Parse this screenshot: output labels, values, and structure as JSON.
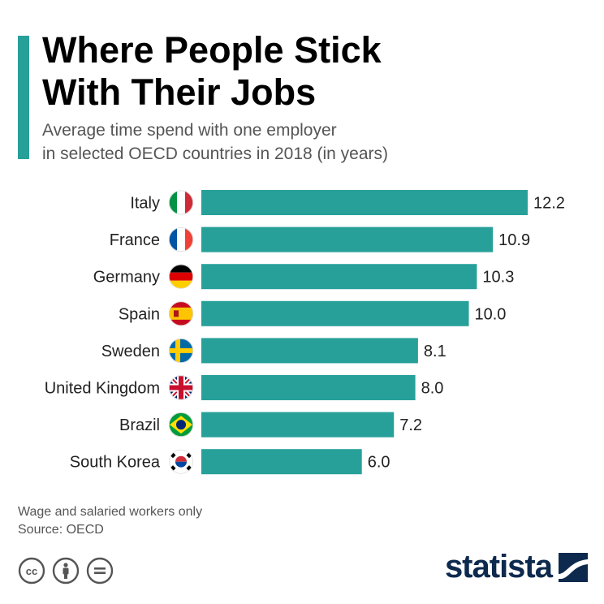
{
  "header": {
    "title_line1": "Where People Stick",
    "title_line2": "With Their Jobs",
    "subtitle_line1": "Average time spend with one employer",
    "subtitle_line2": "in selected OECD countries in 2018 (in years)"
  },
  "footer": {
    "note": "Wage and salaried workers only",
    "source": "Source: OECD",
    "brand": "statista"
  },
  "colors": {
    "accent": "#27a09a",
    "bar": "#27a09a",
    "brand": "#0d2a4e"
  },
  "icons": [
    "creative-commons-icon",
    "attribution-icon",
    "no-derivatives-icon",
    "statista-logo-icon"
  ],
  "chart_data": {
    "type": "bar",
    "orientation": "horizontal",
    "categories": [
      "Italy",
      "France",
      "Germany",
      "Spain",
      "Sweden",
      "United Kingdom",
      "Brazil",
      "South Korea"
    ],
    "flags": [
      "flag-italy-icon",
      "flag-france-icon",
      "flag-germany-icon",
      "flag-spain-icon",
      "flag-sweden-icon",
      "flag-uk-icon",
      "flag-brazil-icon",
      "flag-south-korea-icon"
    ],
    "values": [
      12.2,
      10.9,
      10.3,
      10.0,
      8.1,
      8.0,
      7.2,
      6.0
    ],
    "value_labels": [
      "12.2",
      "10.9",
      "10.3",
      "10.0",
      "8.1",
      "8.0",
      "7.2",
      "6.0"
    ],
    "xlim": [
      0,
      12.2
    ],
    "grid": false,
    "legend": "none"
  }
}
